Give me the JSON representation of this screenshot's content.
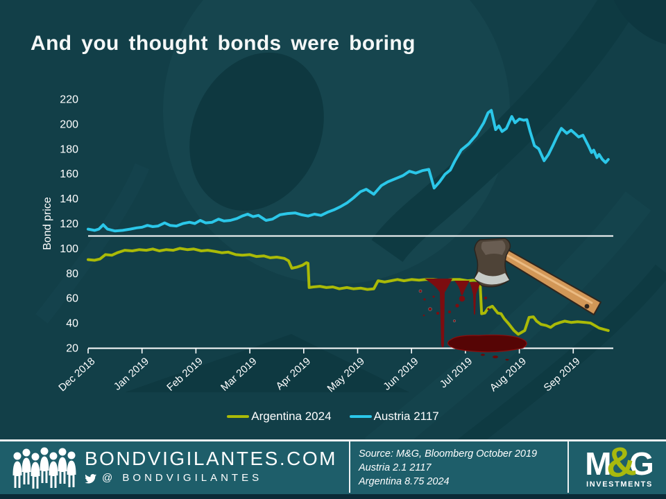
{
  "title": "And you thought bonds were boring",
  "colors": {
    "background": "#123f48",
    "footer_background": "#1e5e6a",
    "bottom_strip": "#0a2a36",
    "text": "#ffffff",
    "axis": "#ffffff",
    "argentina_line": "#aaba07",
    "austria_line": "#2bc7e9",
    "blood": "#7c0d10",
    "logo_green": "#a8b90e"
  },
  "chart_data": {
    "type": "line",
    "title": "",
    "xlabel": "",
    "ylabel": "Bond price",
    "ylim": [
      20,
      220
    ],
    "yticks": [
      20,
      40,
      60,
      80,
      100,
      120,
      140,
      160,
      180,
      200,
      220
    ],
    "x_unit": "months since Dec 2018 tick",
    "x_tick_labels": [
      "Dec 2018",
      "Jan 2019",
      "Feb 2019",
      "Mar 2019",
      "Apr 2019",
      "May 2019",
      "Jun 2019",
      "Jul 2019",
      "Aug 2019",
      "Sep 2019"
    ],
    "reference_line_y": 110,
    "grid": false,
    "legend_position": "bottom",
    "series": [
      {
        "name": "Argentina 2024",
        "color": "#aaba07",
        "points": [
          [
            0,
            91
          ],
          [
            0.12,
            90.5
          ],
          [
            0.22,
            91.5
          ],
          [
            0.32,
            95
          ],
          [
            0.44,
            94.5
          ],
          [
            0.54,
            96.5
          ],
          [
            0.68,
            98.5
          ],
          [
            0.82,
            98
          ],
          [
            0.95,
            99
          ],
          [
            1.08,
            98.5
          ],
          [
            1.2,
            99.5
          ],
          [
            1.32,
            98
          ],
          [
            1.45,
            99
          ],
          [
            1.58,
            98.5
          ],
          [
            1.7,
            100
          ],
          [
            1.84,
            99
          ],
          [
            1.96,
            99.5
          ],
          [
            2.1,
            98
          ],
          [
            2.22,
            98.5
          ],
          [
            2.36,
            97.5
          ],
          [
            2.48,
            96.5
          ],
          [
            2.6,
            97
          ],
          [
            2.74,
            95
          ],
          [
            2.86,
            94.5
          ],
          [
            3.0,
            95
          ],
          [
            3.12,
            93.5
          ],
          [
            3.26,
            94
          ],
          [
            3.38,
            92.5
          ],
          [
            3.5,
            93
          ],
          [
            3.64,
            92
          ],
          [
            3.72,
            90
          ],
          [
            3.78,
            84
          ],
          [
            3.88,
            85
          ],
          [
            3.98,
            86.5
          ],
          [
            4.05,
            88.5
          ],
          [
            4.08,
            88
          ],
          [
            4.1,
            68.5
          ],
          [
            4.18,
            69
          ],
          [
            4.3,
            69.5
          ],
          [
            4.42,
            68.5
          ],
          [
            4.54,
            69
          ],
          [
            4.66,
            67.5
          ],
          [
            4.8,
            68.5
          ],
          [
            4.92,
            67.5
          ],
          [
            5.06,
            68
          ],
          [
            5.18,
            67
          ],
          [
            5.3,
            67.5
          ],
          [
            5.38,
            74
          ],
          [
            5.5,
            73
          ],
          [
            5.62,
            74
          ],
          [
            5.74,
            75
          ],
          [
            5.86,
            74
          ],
          [
            6.0,
            75
          ],
          [
            6.14,
            74.5
          ],
          [
            6.26,
            75
          ],
          [
            6.4,
            75
          ],
          [
            6.52,
            74.5
          ],
          [
            6.64,
            74.5
          ],
          [
            6.78,
            75
          ],
          [
            6.9,
            75
          ],
          [
            7.04,
            74
          ],
          [
            7.16,
            74.5
          ],
          [
            7.27,
            74
          ],
          [
            7.3,
            47.5
          ],
          [
            7.36,
            48
          ],
          [
            7.42,
            52
          ],
          [
            7.5,
            53.5
          ],
          [
            7.6,
            48
          ],
          [
            7.66,
            47.5
          ],
          [
            7.72,
            43.5
          ],
          [
            7.8,
            39.5
          ],
          [
            7.9,
            34
          ],
          [
            7.98,
            31
          ],
          [
            8.04,
            32.5
          ],
          [
            8.1,
            34
          ],
          [
            8.18,
            44.5
          ],
          [
            8.26,
            45
          ],
          [
            8.32,
            41.5
          ],
          [
            8.4,
            39
          ],
          [
            8.5,
            38
          ],
          [
            8.58,
            36.5
          ],
          [
            8.66,
            39
          ],
          [
            8.76,
            40.5
          ],
          [
            8.84,
            41.5
          ],
          [
            8.96,
            40.5
          ],
          [
            9.08,
            41
          ],
          [
            9.22,
            40.5
          ],
          [
            9.32,
            40
          ],
          [
            9.4,
            38
          ],
          [
            9.48,
            36
          ],
          [
            9.56,
            35
          ],
          [
            9.65,
            34
          ]
        ]
      },
      {
        "name": "Austria 2117",
        "color": "#2bc7e9",
        "points": [
          [
            0,
            115.5
          ],
          [
            0.12,
            114.5
          ],
          [
            0.2,
            115.5
          ],
          [
            0.28,
            119
          ],
          [
            0.36,
            115.5
          ],
          [
            0.5,
            114
          ],
          [
            0.64,
            114.5
          ],
          [
            0.78,
            115.5
          ],
          [
            0.9,
            116.5
          ],
          [
            1.0,
            117
          ],
          [
            1.1,
            118.5
          ],
          [
            1.2,
            117.5
          ],
          [
            1.3,
            118
          ],
          [
            1.42,
            120.5
          ],
          [
            1.52,
            118.5
          ],
          [
            1.64,
            118
          ],
          [
            1.76,
            120
          ],
          [
            1.88,
            121
          ],
          [
            1.98,
            120
          ],
          [
            2.08,
            122.5
          ],
          [
            2.18,
            120.5
          ],
          [
            2.3,
            121
          ],
          [
            2.42,
            123.5
          ],
          [
            2.52,
            122
          ],
          [
            2.64,
            122.5
          ],
          [
            2.76,
            124
          ],
          [
            2.86,
            126
          ],
          [
            2.96,
            127.5
          ],
          [
            3.06,
            125.5
          ],
          [
            3.16,
            126.5
          ],
          [
            3.3,
            122.5
          ],
          [
            3.42,
            123.5
          ],
          [
            3.56,
            127
          ],
          [
            3.7,
            128
          ],
          [
            3.84,
            128.5
          ],
          [
            3.96,
            127
          ],
          [
            4.08,
            126
          ],
          [
            4.2,
            127.5
          ],
          [
            4.32,
            126.5
          ],
          [
            4.44,
            129
          ],
          [
            4.56,
            131
          ],
          [
            4.68,
            133.5
          ],
          [
            4.8,
            136.5
          ],
          [
            4.92,
            140.5
          ],
          [
            5.05,
            145.5
          ],
          [
            5.16,
            147.5
          ],
          [
            5.3,
            143.5
          ],
          [
            5.44,
            150.5
          ],
          [
            5.56,
            153.5
          ],
          [
            5.7,
            156
          ],
          [
            5.84,
            158.5
          ],
          [
            5.96,
            162
          ],
          [
            6.08,
            160.5
          ],
          [
            6.2,
            162.5
          ],
          [
            6.32,
            163.5
          ],
          [
            6.42,
            148.5
          ],
          [
            6.52,
            153.5
          ],
          [
            6.62,
            159.5
          ],
          [
            6.72,
            163
          ],
          [
            6.8,
            170
          ],
          [
            6.92,
            179
          ],
          [
            7.06,
            184
          ],
          [
            7.2,
            191
          ],
          [
            7.34,
            201
          ],
          [
            7.42,
            209
          ],
          [
            7.48,
            211
          ],
          [
            7.56,
            195.5
          ],
          [
            7.62,
            198.5
          ],
          [
            7.68,
            194
          ],
          [
            7.76,
            196.5
          ],
          [
            7.86,
            206
          ],
          [
            7.92,
            201
          ],
          [
            8.0,
            204
          ],
          [
            8.08,
            203
          ],
          [
            8.14,
            203.5
          ],
          [
            8.2,
            194
          ],
          [
            8.28,
            182.5
          ],
          [
            8.36,
            180
          ],
          [
            8.46,
            170.5
          ],
          [
            8.54,
            175.5
          ],
          [
            8.62,
            182.5
          ],
          [
            8.7,
            190
          ],
          [
            8.78,
            196.5
          ],
          [
            8.88,
            192.5
          ],
          [
            8.96,
            195
          ],
          [
            9.04,
            192
          ],
          [
            9.1,
            189.5
          ],
          [
            9.18,
            191
          ],
          [
            9.28,
            182.5
          ],
          [
            9.34,
            177
          ],
          [
            9.38,
            179
          ],
          [
            9.44,
            173
          ],
          [
            9.48,
            175.5
          ],
          [
            9.54,
            171.5
          ],
          [
            9.6,
            169
          ],
          [
            9.65,
            171.5
          ]
        ]
      }
    ],
    "annotations": [
      "axe illustration chopping the Argentina 2024 line at its July 2019 collapse",
      "blood drips and blood pool below the chopped line"
    ]
  },
  "footer": {
    "site": "BONDVIGILANTES.COM",
    "twitter": "@ BONDVIGILANTES",
    "source_lines": [
      "Source: M&G, Bloomberg October 2019",
      "Austria 2.1 2117",
      "Argentina 8.75 2024"
    ],
    "logo": {
      "m": "M",
      "amp": "&",
      "g": "G",
      "sub": "INVESTMENTS"
    }
  }
}
